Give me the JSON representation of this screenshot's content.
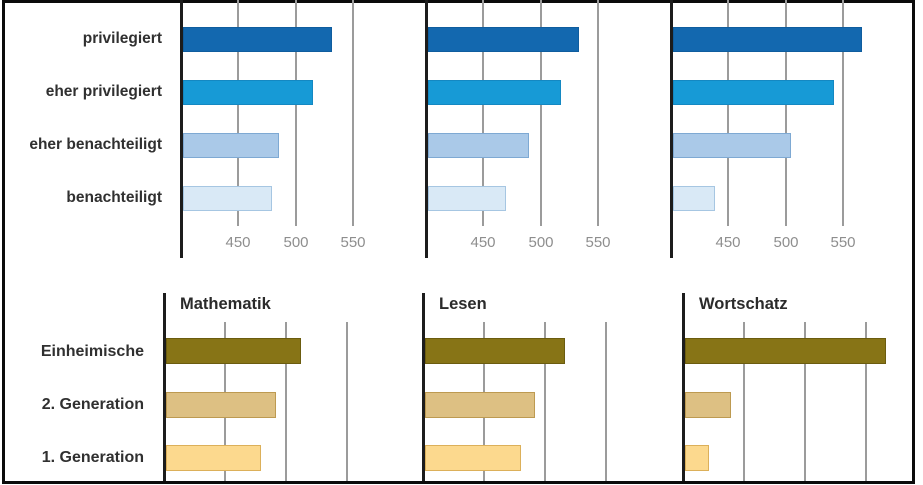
{
  "page": {
    "background": "#ffffff",
    "frame_color": "#0b0b0b",
    "axis_color": "#1c1c1c",
    "gridline_color": "#9b9b9b",
    "tick_text_color": "#8e8e8e",
    "label_text_color": "#303030"
  },
  "panels": {
    "top": {
      "row_labels": [
        "privilegiert",
        "eher privilegiert",
        "eher benachteiligt",
        "benachteiligt"
      ],
      "bar_fills": [
        "#1368af",
        "#179ad6",
        "#aac9e8",
        "#d9e9f6"
      ],
      "bar_borders": [
        "#0f5d9e",
        "#1488c2",
        "#7ea9d3",
        "#a6c6e2"
      ]
    },
    "bottom": {
      "row_labels": [
        "Einheimische",
        "2. Generation",
        "1. Generation"
      ],
      "bar_fills": [
        "#877416",
        "#ddc083",
        "#fcd98e"
      ],
      "bar_borders": [
        "#6b5c0f",
        "#bd9a51",
        "#dcb05a"
      ]
    }
  },
  "chart_data": [
    {
      "id": "top-left",
      "panel": "top",
      "type": "bar",
      "orientation": "horizontal",
      "title": "",
      "categories": [
        "privilegiert",
        "eher privilegiert",
        "eher benachteiligt",
        "benachteiligt"
      ],
      "values": [
        530,
        513,
        484,
        478
      ],
      "xlim": [
        400,
        605
      ],
      "xticks": [
        "450",
        "500",
        "550"
      ],
      "xtick_values": [
        450,
        500,
        550
      ],
      "xtick_labels_shown": true,
      "grid": true,
      "palette": "top"
    },
    {
      "id": "top-middle",
      "panel": "top",
      "type": "bar",
      "orientation": "horizontal",
      "title": "",
      "categories": [
        "privilegiert",
        "eher privilegiert",
        "eher benachteiligt",
        "benachteiligt"
      ],
      "values": [
        532,
        516,
        488,
        468
      ],
      "xlim": [
        400,
        605
      ],
      "xticks": [
        "450",
        "500",
        "550"
      ],
      "xtick_values": [
        450,
        500,
        550
      ],
      "xtick_labels_shown": true,
      "grid": true,
      "palette": "top"
    },
    {
      "id": "top-right",
      "panel": "top",
      "type": "bar",
      "orientation": "horizontal",
      "title": "",
      "categories": [
        "privilegiert",
        "eher privilegiert",
        "eher benachteiligt",
        "benachteiligt"
      ],
      "values": [
        565,
        540,
        503,
        437
      ],
      "xlim": [
        400,
        610
      ],
      "xticks": [
        "450",
        "500",
        "550"
      ],
      "xtick_values": [
        450,
        500,
        550
      ],
      "xtick_labels_shown": true,
      "grid": true,
      "palette": "top"
    },
    {
      "id": "bottom-left",
      "panel": "bottom",
      "type": "bar",
      "orientation": "horizontal",
      "title": "Mathematik",
      "categories": [
        "Einheimische",
        "2. Generation",
        "1. Generation"
      ],
      "values": [
        511,
        490,
        478
      ],
      "xlim": [
        400,
        605
      ],
      "xticks": [],
      "xtick_values": [
        450,
        500,
        550
      ],
      "xtick_labels_shown": false,
      "grid": true,
      "palette": "bottom"
    },
    {
      "id": "bottom-middle",
      "panel": "bottom",
      "type": "bar",
      "orientation": "horizontal",
      "title": "Lesen",
      "categories": [
        "Einheimische",
        "2. Generation",
        "1. Generation"
      ],
      "values": [
        515,
        490,
        479
      ],
      "xlim": [
        400,
        605
      ],
      "xticks": [],
      "xtick_values": [
        450,
        500,
        550
      ],
      "xtick_labels_shown": false,
      "grid": true,
      "palette": "bottom"
    },
    {
      "id": "bottom-right",
      "panel": "bottom",
      "type": "bar",
      "orientation": "horizontal",
      "title": "Wortschatz",
      "categories": [
        "Einheimische",
        "2. Generation",
        "1. Generation"
      ],
      "values": [
        565,
        438,
        420
      ],
      "xlim": [
        400,
        588
      ],
      "xticks": [],
      "xtick_values": [
        450,
        500,
        550
      ],
      "xtick_labels_shown": false,
      "grid": true,
      "palette": "bottom"
    }
  ]
}
